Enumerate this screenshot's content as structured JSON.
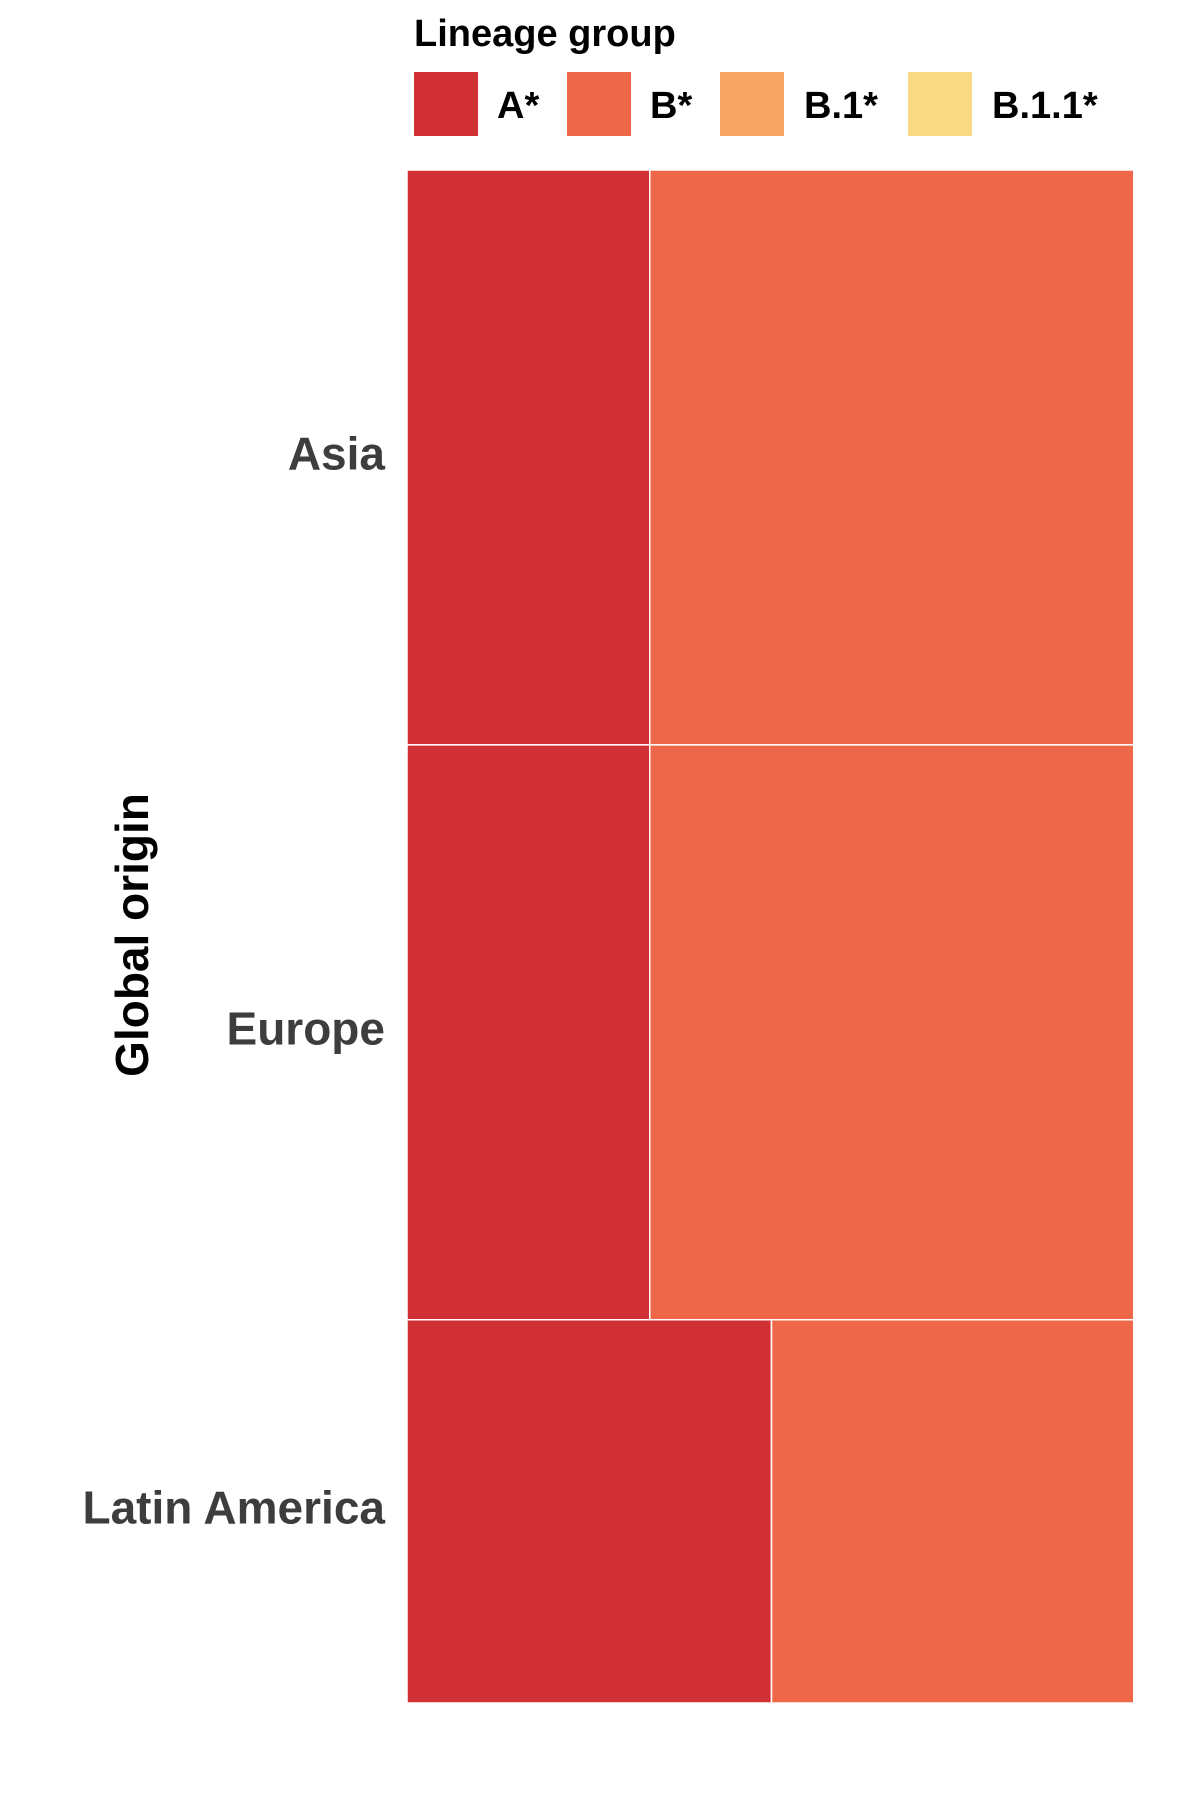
{
  "chart_data": {
    "type": "mosaic",
    "legend_title": "Lineage group",
    "legend_position": "top",
    "ylabel": "Global origin",
    "lineage_groups": [
      {
        "name": "A*",
        "color": "#d13134"
      },
      {
        "name": "B*",
        "color": "#ee6749"
      },
      {
        "name": "B.1*",
        "color": "#f6a562"
      },
      {
        "name": "B.1.1*",
        "color": "#fad985"
      }
    ],
    "categories": [
      "Asia",
      "Europe",
      "Latin America"
    ],
    "category_share": [
      0.375,
      0.375,
      0.25
    ],
    "series_share_within_category": [
      {
        "name": "A*",
        "values": [
          0.333,
          0.333,
          0.5
        ]
      },
      {
        "name": "B*",
        "values": [
          0.664,
          0.664,
          0.497
        ]
      },
      {
        "name": "B.1*",
        "values": [
          0.002,
          0.002,
          0.002
        ]
      },
      {
        "name": "B.1.1*",
        "values": [
          0.001,
          0.001,
          0.001
        ]
      }
    ]
  }
}
